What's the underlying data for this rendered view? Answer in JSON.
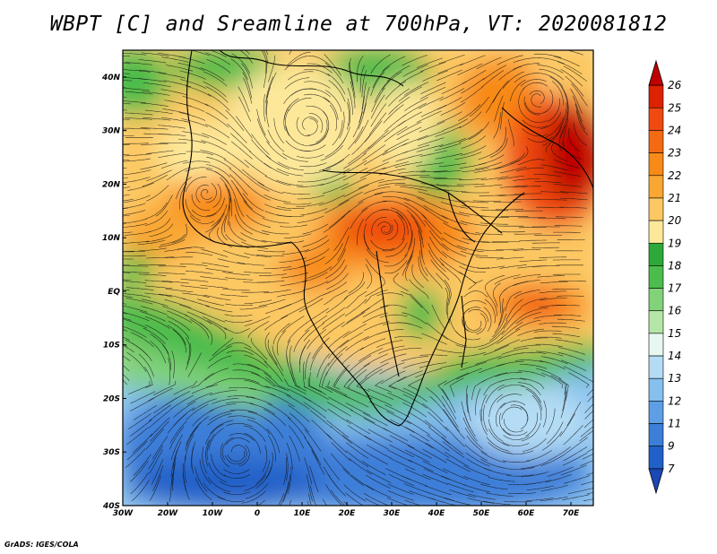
{
  "title": "WBPT [C] and Sreamline at 700hPa, VT: 2020081812",
  "credit": "GrADS: IGES/COLA",
  "map": {
    "lon_ticks": [
      "30W",
      "20W",
      "10W",
      "0",
      "10E",
      "20E",
      "30E",
      "40E",
      "50E",
      "60E",
      "70E"
    ],
    "lat_ticks": [
      "40N",
      "30N",
      "20N",
      "10N",
      "EQ",
      "10S",
      "20S",
      "30S",
      "40S"
    ]
  },
  "colorbar": {
    "labels": [
      "26",
      "25",
      "24",
      "23",
      "22",
      "21",
      "20",
      "19",
      "18",
      "17",
      "16",
      "15",
      "14",
      "13",
      "12",
      "11",
      "9",
      "7"
    ],
    "colors": [
      "#c00000",
      "#dc2200",
      "#ef4a10",
      "#f46a12",
      "#f88a18",
      "#f9a632",
      "#fcc862",
      "#fde89a",
      "#2ea83a",
      "#4cbc4c",
      "#82d27a",
      "#b4e6a8",
      "#e6f8f0",
      "#b4dcf4",
      "#86c0ee",
      "#5e9ee4",
      "#3c7ed8",
      "#2060c8",
      "#1a48b4"
    ]
  },
  "chart_data": {
    "type": "heatmap",
    "title": "WBPT [C] and Sreamline at 700hPa, VT: 2020081812",
    "x_range": [
      -30,
      75
    ],
    "y_range": [
      -40,
      45
    ],
    "color_scale_levels": [
      7,
      9,
      11,
      12,
      13,
      14,
      15,
      16,
      17,
      18,
      19,
      20,
      21,
      22,
      23,
      24,
      25,
      26
    ]
  }
}
